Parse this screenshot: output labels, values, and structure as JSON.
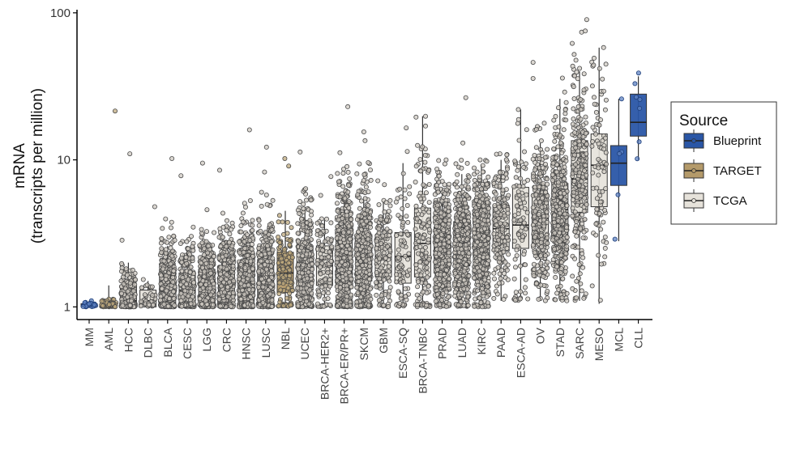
{
  "chart_data": {
    "type": "boxplot-jitter",
    "ylabel": "mRNA",
    "ylabel2": "(transcripts per million)",
    "yscale": "log10",
    "ylim": [
      0.82,
      105
    ],
    "yticks": [
      1,
      10,
      100
    ],
    "ytick_labels": [
      "1",
      "10",
      "100"
    ],
    "grid": false,
    "legend": {
      "title": "Source",
      "position": "right",
      "entries": [
        {
          "name": "Blueprint",
          "color": "#2a56a6"
        },
        {
          "name": "TARGET",
          "color": "#b49a6a"
        },
        {
          "name": "TCGA",
          "color": "#e6e2da"
        }
      ]
    },
    "categories": [
      {
        "name": "MM",
        "source": "Blueprint",
        "n": 30,
        "q1": 1.0,
        "median": 1.02,
        "q3": 1.05,
        "wlo": 1.0,
        "whi": 1.1,
        "max": 1.1
      },
      {
        "name": "AML",
        "source": "TARGET",
        "n": 120,
        "q1": 1.0,
        "median": 1.02,
        "q3": 1.05,
        "wlo": 1.0,
        "whi": 1.4,
        "max": 21.5
      },
      {
        "name": "HCC",
        "source": "TCGA",
        "n": 250,
        "q1": 1.0,
        "median": 1.1,
        "q3": 1.4,
        "wlo": 1.0,
        "whi": 2.0,
        "max": 11
      },
      {
        "name": "DLBC",
        "source": "TCGA",
        "n": 40,
        "q1": 1.0,
        "median": 1.1,
        "q3": 1.3,
        "wlo": 1.0,
        "whi": 1.5,
        "max": 4.8
      },
      {
        "name": "BLCA",
        "source": "TCGA",
        "n": 350,
        "q1": 1.05,
        "median": 1.3,
        "q3": 1.8,
        "wlo": 1.0,
        "whi": 2.6,
        "max": 10.2
      },
      {
        "name": "CESC",
        "source": "TCGA",
        "n": 250,
        "q1": 1.05,
        "median": 1.3,
        "q3": 1.7,
        "wlo": 1.0,
        "whi": 2.6,
        "max": 7.8
      },
      {
        "name": "LGG",
        "source": "TCGA",
        "n": 400,
        "q1": 1.1,
        "median": 1.4,
        "q3": 1.8,
        "wlo": 1.0,
        "whi": 2.7,
        "max": 9.5
      },
      {
        "name": "CRC",
        "source": "TCGA",
        "n": 450,
        "q1": 1.1,
        "median": 1.4,
        "q3": 1.9,
        "wlo": 1.0,
        "whi": 2.8,
        "max": 8.5
      },
      {
        "name": "HNSC",
        "source": "TCGA",
        "n": 450,
        "q1": 1.1,
        "median": 1.5,
        "q3": 2.0,
        "wlo": 1.0,
        "whi": 3.0,
        "max": 16
      },
      {
        "name": "LUSC",
        "source": "TCGA",
        "n": 400,
        "q1": 1.1,
        "median": 1.5,
        "q3": 2.1,
        "wlo": 1.0,
        "whi": 3.2,
        "max": 12.2
      },
      {
        "name": "NBL",
        "source": "TARGET",
        "n": 120,
        "q1": 1.25,
        "median": 1.7,
        "q3": 2.35,
        "wlo": 1.0,
        "whi": 4.5,
        "max": 10.2
      },
      {
        "name": "UCEC",
        "source": "TCGA",
        "n": 400,
        "q1": 1.3,
        "median": 1.8,
        "q3": 2.6,
        "wlo": 1.0,
        "whi": 4.8,
        "max": 11.3
      },
      {
        "name": "BRCA-HER2+",
        "source": "TCGA",
        "n": 120,
        "q1": 1.4,
        "median": 1.9,
        "q3": 2.6,
        "wlo": 1.0,
        "whi": 3.9,
        "max": 7.7
      },
      {
        "name": "BRCA-ER/PR+",
        "source": "TCGA",
        "n": 600,
        "q1": 1.4,
        "median": 2.0,
        "q3": 2.9,
        "wlo": 1.0,
        "whi": 5.5,
        "max": 23
      },
      {
        "name": "SKCM",
        "source": "TCGA",
        "n": 450,
        "q1": 1.5,
        "median": 2.1,
        "q3": 3.1,
        "wlo": 1.0,
        "whi": 5.5,
        "max": 15.5
      },
      {
        "name": "GBM",
        "source": "TCGA",
        "n": 150,
        "q1": 1.6,
        "median": 2.2,
        "q3": 3.0,
        "wlo": 1.0,
        "whi": 5.2,
        "max": 7.2
      },
      {
        "name": "ESCA-SQ",
        "source": "TCGA",
        "n": 90,
        "q1": 1.45,
        "median": 2.2,
        "q3": 3.2,
        "wlo": 1.0,
        "whi": 9.5,
        "max": 16.5
      },
      {
        "name": "BRCA-TNBC",
        "source": "TCGA",
        "n": 150,
        "q1": 1.6,
        "median": 2.7,
        "q3": 4.7,
        "wlo": 1.0,
        "whi": 19.8,
        "max": 19.8
      },
      {
        "name": "PRAD",
        "source": "TCGA",
        "n": 500,
        "q1": 1.8,
        "median": 2.5,
        "q3": 3.5,
        "wlo": 1.0,
        "whi": 6.5,
        "max": 10
      },
      {
        "name": "LUAD",
        "source": "TCGA",
        "n": 500,
        "q1": 1.9,
        "median": 2.6,
        "q3": 3.8,
        "wlo": 1.0,
        "whi": 8.0,
        "max": 26.5
      },
      {
        "name": "KIRC",
        "source": "TCGA",
        "n": 530,
        "q1": 2.0,
        "median": 2.8,
        "q3": 4.0,
        "wlo": 1.0,
        "whi": 9.2,
        "max": 10
      },
      {
        "name": "PAAD",
        "source": "TCGA",
        "n": 180,
        "q1": 2.4,
        "median": 3.4,
        "q3": 4.9,
        "wlo": 1.1,
        "whi": 10,
        "max": 11
      },
      {
        "name": "ESCA-AD",
        "source": "TCGA",
        "n": 90,
        "q1": 2.5,
        "median": 3.6,
        "q3": 6.5,
        "wlo": 1.1,
        "whi": 22,
        "max": 22
      },
      {
        "name": "OV",
        "source": "TCGA",
        "n": 300,
        "q1": 2.7,
        "median": 4.0,
        "q3": 5.9,
        "wlo": 1.1,
        "whi": 13,
        "max": 46
      },
      {
        "name": "STAD",
        "source": "TCGA",
        "n": 400,
        "q1": 3.0,
        "median": 4.6,
        "q3": 6.9,
        "wlo": 1.1,
        "whi": 26,
        "max": 36
      },
      {
        "name": "SARC",
        "source": "TCGA",
        "n": 260,
        "q1": 4.4,
        "median": 7.4,
        "q3": 13.5,
        "wlo": 1.1,
        "whi": 40,
        "max": 90
      },
      {
        "name": "MESO",
        "source": "TCGA",
        "n": 87,
        "q1": 4.8,
        "median": 9.2,
        "q3": 15,
        "wlo": 1.05,
        "whi": 58,
        "max": 58
      },
      {
        "name": "MCL",
        "source": "Blueprint",
        "n": 5,
        "q1": 6.7,
        "median": 9.5,
        "q3": 12.5,
        "wlo": 2.8,
        "whi": 26,
        "max": 26
      },
      {
        "name": "CLL",
        "source": "Blueprint",
        "n": 7,
        "q1": 14.5,
        "median": 18,
        "q3": 28,
        "wlo": 10,
        "whi": 37,
        "max": 39
      }
    ]
  }
}
